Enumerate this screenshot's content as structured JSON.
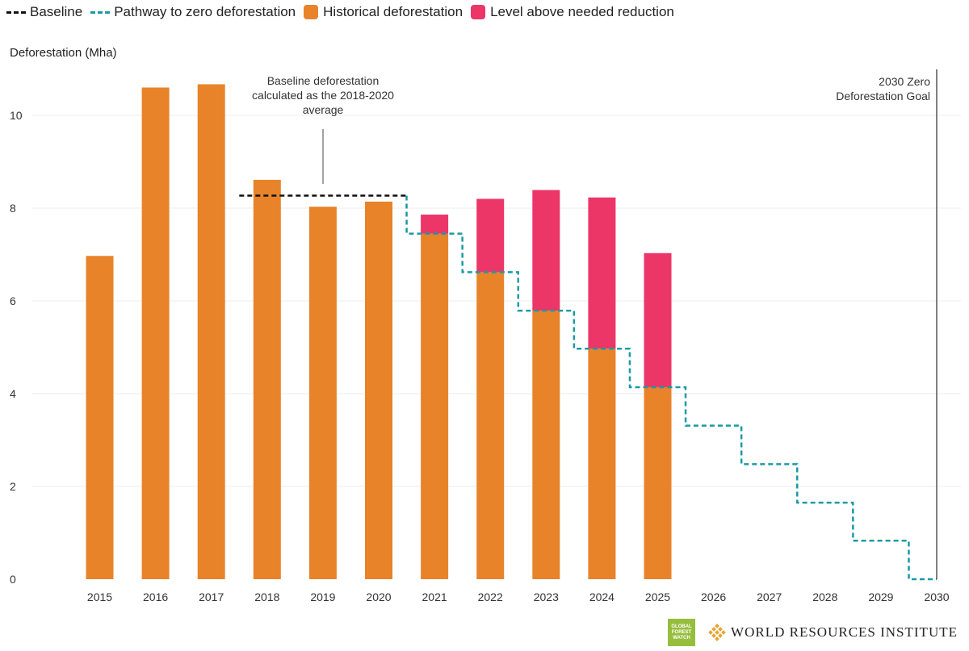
{
  "legend": {
    "baseline": "Baseline",
    "pathway": "Pathway to zero deforestation",
    "historical": "Historical deforestation",
    "above": "Level above needed reduction"
  },
  "colors": {
    "historical": "#e8832a",
    "above": "#ec3668",
    "pathway": "#1a9aa6",
    "baseline": "#111111",
    "goal_line": "#555555",
    "grid": "#eeeeee"
  },
  "footer": {
    "gfw_lines": [
      "GLOBAL",
      "FOREST",
      "WATCH"
    ],
    "wri": "WORLD RESOURCES INSTITUTE"
  },
  "chart_data": {
    "type": "bar",
    "ylabel": "Deforestation (Mha)",
    "ylim": [
      0,
      11
    ],
    "yticks": [
      0,
      2,
      4,
      6,
      8,
      10
    ],
    "categories": [
      "2015",
      "2016",
      "2017",
      "2018",
      "2019",
      "2020",
      "2021",
      "2022",
      "2023",
      "2024",
      "2025",
      "2026",
      "2027",
      "2028",
      "2029",
      "2030"
    ],
    "series": [
      {
        "name": "Historical deforestation",
        "values": [
          6.97,
          10.6,
          10.67,
          8.61,
          8.03,
          8.14,
          7.45,
          6.62,
          5.79,
          4.97,
          4.14,
          null,
          null,
          null,
          null,
          null
        ]
      },
      {
        "name": "Level above needed reduction",
        "values": [
          0,
          0,
          0,
          0,
          0,
          0,
          0.41,
          1.58,
          2.6,
          3.26,
          2.89,
          null,
          null,
          null,
          null,
          null
        ]
      }
    ],
    "baseline": {
      "name": "Baseline",
      "value": 8.27,
      "from": "2018",
      "to": "2020"
    },
    "pathway": {
      "name": "Pathway to zero deforestation",
      "categories": [
        "2021",
        "2022",
        "2023",
        "2024",
        "2025",
        "2026",
        "2027",
        "2028",
        "2029",
        "2030"
      ],
      "values": [
        7.45,
        6.62,
        5.79,
        4.97,
        4.14,
        3.31,
        2.48,
        1.65,
        0.83,
        0
      ]
    },
    "annotations": [
      {
        "lines": [
          "Baseline deforestation",
          "calculated as the 2018-2020",
          "average"
        ]
      },
      {
        "lines": [
          "2030 Zero",
          "Deforestation Goal"
        ]
      }
    ],
    "legend_position": "top-left",
    "grid": true
  }
}
